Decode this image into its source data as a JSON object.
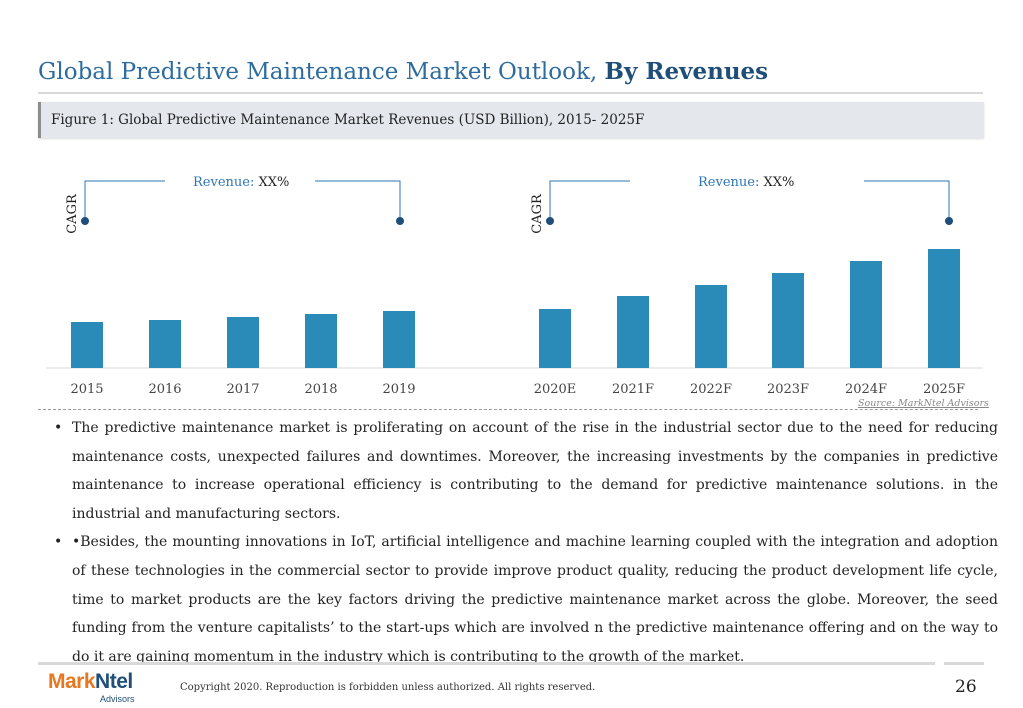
{
  "slide": {
    "title_main": "Global Predictive Maintenance Market Outlook, ",
    "title_bold": "By Revenues",
    "figure_caption": "Figure 1: Global Predictive Maintenance Market Revenues (USD Billion), 2015- 2025F",
    "source": "Source: MarkNtel Advisors",
    "bullets": [
      "The predictive maintenance market is proliferating on account of the rise in the industrial sector due to the need for reducing maintenance costs, unexpected failures and downtimes. Moreover, the increasing investments by the companies in predictive maintenance to increase operational efficiency is contributing to the demand for predictive maintenance solutions. in the industrial and manufacturing sectors.",
      "•Besides, the mounting innovations in IoT, artificial intelligence and machine learning coupled with the integration and adoption of these technologies in the commercial sector to provide improve product quality, reducing the product development life cycle, time to market products are the key factors driving the predictive maintenance market across the globe. Moreover, the seed funding from the venture capitalists’ to the start-ups which are involved n the predictive maintenance offering and on the way to do it are gaining momentum in the industry which is contributing to the growth of the market."
    ],
    "bullet_symbol": "•",
    "copyright": "Copyright 2020. Reproduction is forbidden unless authorized. All rights reserved.",
    "page_number": "26",
    "logo_text_a": "Mark",
    "logo_text_b": "Ntel",
    "logo_subtext": "Advisors"
  },
  "chart_data": {
    "type": "bar",
    "categories": [
      "2015",
      "2016",
      "2017",
      "2018",
      "2019",
      "2020E",
      "2021F",
      "2022F",
      "2023F",
      "2024F",
      "2025F"
    ],
    "values": [
      46,
      48,
      51,
      54,
      57,
      59,
      72,
      83,
      95,
      107,
      119
    ],
    "color": "#2a8bb8",
    "ylim": [
      0,
      130
    ],
    "title": "",
    "xlabel": "",
    "ylabel": "",
    "annotations": [
      {
        "cagr_label": "CAGR",
        "revenue_label": "Revenue: ",
        "revenue_value": "XX%"
      },
      {
        "cagr_label": "CAGR",
        "revenue_label": "Revenue: ",
        "revenue_value": "XX%"
      }
    ],
    "annotation_color": "#2e75b6"
  }
}
